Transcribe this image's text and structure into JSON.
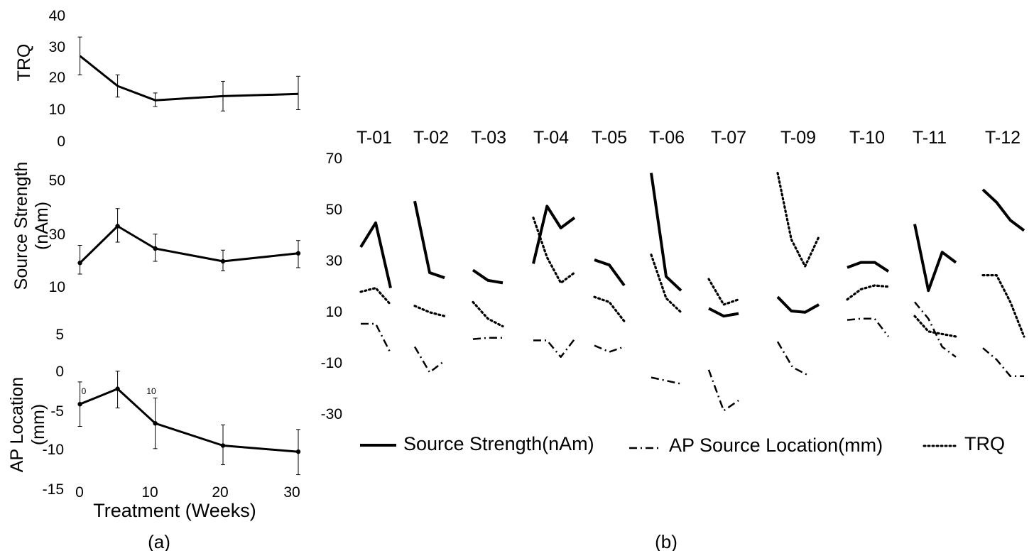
{
  "chart_data": [
    {
      "type": "line",
      "panel_label": "(a)",
      "xlabel": "Treatment (Weeks)",
      "xticks": [
        "0",
        "10",
        "20",
        "30"
      ],
      "x": [
        1,
        6,
        11,
        20,
        30
      ],
      "subplots": [
        {
          "ylabel": "TRQ",
          "yticks": [
            "0",
            "10",
            "20",
            "30",
            "40"
          ],
          "ylim": [
            0,
            40
          ],
          "values": [
            27,
            17.5,
            13,
            14.3,
            15
          ],
          "err_low": [
            21,
            14,
            11,
            9.6,
            10
          ],
          "err_high": [
            33,
            21,
            15.3,
            19,
            20.6
          ],
          "markers": false
        },
        {
          "ylabel": "Source Strength (nAm)",
          "ylabel_lines": [
            "Source Strength",
            "(nAm)"
          ],
          "yticks": [
            "10",
            "30",
            "50"
          ],
          "ylim": [
            0,
            60
          ],
          "values": [
            23.5,
            35,
            28,
            24,
            26.5
          ],
          "err_low": [
            20,
            30,
            24,
            21,
            22
          ],
          "err_high": [
            29,
            40.5,
            32.5,
            27.5,
            30.5
          ],
          "markers": true
        },
        {
          "ylabel": "AP Location (mm)",
          "ylabel_lines": [
            "AP Location",
            "(mm)"
          ],
          "yticks": [
            "-15",
            "-10",
            "-5",
            "0",
            "5"
          ],
          "ylim": [
            -15,
            5
          ],
          "values": [
            -4,
            -2,
            -6.5,
            -9.4,
            -10.2
          ],
          "err_low": [
            -6.9,
            -4.5,
            -9.8,
            -11.9,
            -13.2
          ],
          "err_high": [
            -1.1,
            0.3,
            -3.2,
            -6.7,
            -7.3
          ],
          "markers": true,
          "inner_labels": [
            "0",
            "10"
          ]
        }
      ]
    },
    {
      "type": "line",
      "panel_label": "(b)",
      "yticks": [
        "-30",
        "-10",
        "10",
        "30",
        "50",
        "70"
      ],
      "ylim": [
        -30,
        70
      ],
      "series_names": [
        "Source Strength(nAm)",
        "AP Source Location(mm)",
        "TRQ"
      ],
      "patients": [
        {
          "label": "T-01",
          "source": [
            35,
            44.5,
            19
          ],
          "ap": [
            5,
            5,
            -6.5
          ],
          "trq": [
            17.5,
            19,
            12.5
          ]
        },
        {
          "label": "T-02",
          "source": [
            53,
            25,
            23
          ],
          "ap": [
            -4,
            -14,
            -9.5
          ],
          "trq": [
            12,
            9.5,
            8
          ]
        },
        {
          "label": "T-03",
          "source": [
            26,
            22,
            21
          ],
          "ap": [
            -1,
            -0.5,
            -0.5
          ],
          "trq": [
            13.5,
            7,
            4
          ]
        },
        {
          "label": "T-04",
          "source": [
            28.5,
            51,
            42.5,
            46.5
          ],
          "ap": [
            -1.5,
            -1.5,
            -8,
            -1
          ],
          "trq": [
            46.5,
            31,
            21,
            25
          ]
        },
        {
          "label": "T-05",
          "source": [
            30,
            28,
            20
          ],
          "ap": [
            -3.5,
            -6,
            -4
          ],
          "trq": [
            15.5,
            13.5,
            6
          ]
        },
        {
          "label": "T-06",
          "source": [
            64,
            23.5,
            18
          ],
          "ap": [
            -16,
            -18.5
          ],
          "trq": [
            32,
            15,
            9.5
          ]
        },
        {
          "label": "T-07",
          "source": [
            11,
            8,
            9
          ],
          "ap": [
            -13,
            -29,
            -25
          ],
          "trq": [
            22.5,
            12.5,
            14.5
          ]
        },
        {
          "label": "T-09",
          "source": [
            15.5,
            10,
            9.5,
            12.5
          ],
          "ap": [
            -2,
            -12,
            -15
          ],
          "trq": [
            64,
            38,
            27.5,
            39
          ]
        },
        {
          "label": "T-10",
          "source": [
            27,
            29,
            29,
            25.5
          ],
          "ap": [
            6.5,
            7,
            7,
            0
          ],
          "trq": [
            14.5,
            18.5,
            20,
            19.5
          ]
        },
        {
          "label": "T-11",
          "source": [
            44,
            18,
            33,
            29
          ],
          "ap": [
            13.5,
            7,
            -4,
            -8
          ],
          "trq": [
            8,
            2,
            1,
            0
          ]
        },
        {
          "label": "T-12",
          "source": [
            57.5,
            52.5,
            45.5,
            41.5
          ],
          "ap": [
            -4.5,
            -9,
            -15.5,
            -15.5
          ],
          "trq": [
            24,
            24,
            13.5,
            0
          ]
        }
      ]
    }
  ]
}
